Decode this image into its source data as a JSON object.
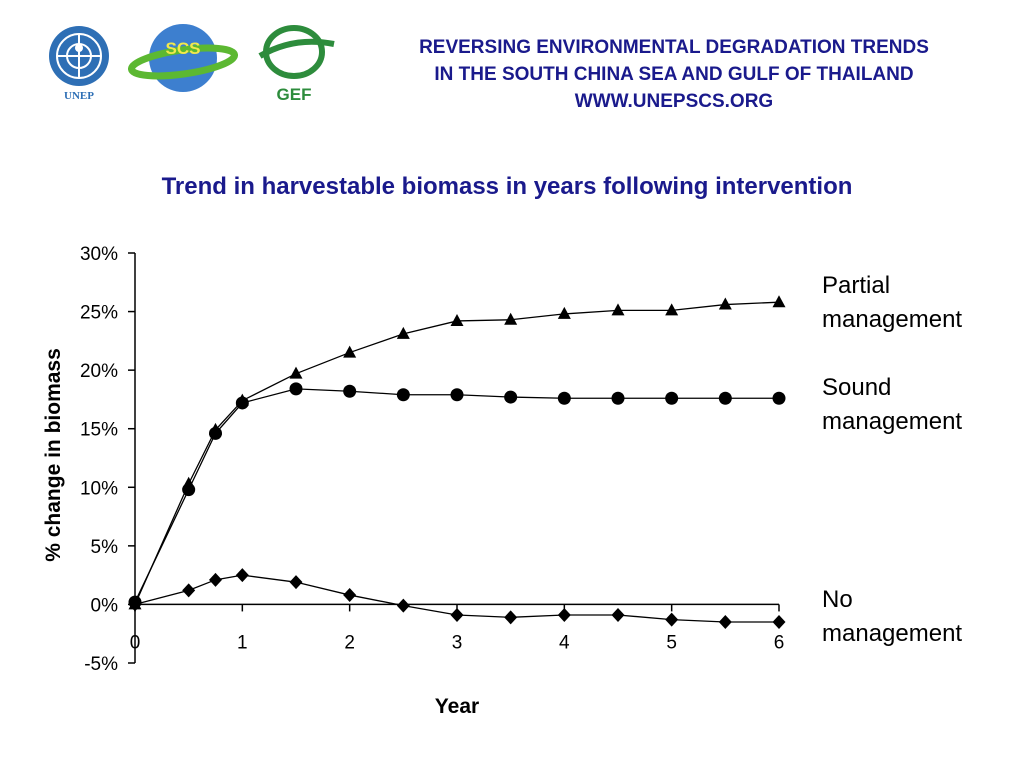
{
  "header": {
    "line1": "REVERSING ENVIRONMENTAL DEGRADATION TRENDS",
    "line2": "IN THE SOUTH CHINA SEA AND GULF OF THAILAND",
    "line3": "WWW.UNEPSCS.ORG"
  },
  "logos": {
    "unep": "UNEP",
    "scs": "SCS",
    "gef": "GEF",
    "unep_color": "#2e6fb5",
    "scs_color": "#3d7fcf",
    "scs_ring_color": "#5cb832",
    "gef_color": "#2d8c3c"
  },
  "chart_data": {
    "type": "line",
    "title": "Trend in harvestable biomass in years following intervention",
    "xlabel": "Year",
    "ylabel": "% change in biomass",
    "xlim": [
      0,
      6
    ],
    "ylim": [
      -0.05,
      0.3
    ],
    "x_ticks": [
      "0",
      "1",
      "2",
      "3",
      "4",
      "5",
      "6"
    ],
    "y_ticks": [
      "-5%",
      "0%",
      "5%",
      "10%",
      "15%",
      "20%",
      "25%",
      "30%"
    ],
    "y_tick_values": [
      -0.05,
      0,
      0.05,
      0.1,
      0.15,
      0.2,
      0.25,
      0.3
    ],
    "grid": false,
    "series": [
      {
        "name": "Partial management",
        "marker": "triangle",
        "x": [
          0,
          0.5,
          0.75,
          1,
          1.5,
          2,
          2.5,
          3,
          3.5,
          4,
          4.5,
          5,
          5.5,
          6
        ],
        "values": [
          0.0,
          0.103,
          0.149,
          0.174,
          0.197,
          0.215,
          0.231,
          0.242,
          0.243,
          0.248,
          0.251,
          0.251,
          0.256,
          0.258
        ]
      },
      {
        "name": "Sound management",
        "marker": "circle",
        "x": [
          0,
          0.5,
          0.75,
          1,
          1.5,
          2,
          2.5,
          3,
          3.5,
          4,
          4.5,
          5,
          5.5,
          6
        ],
        "values": [
          0.002,
          0.098,
          0.146,
          0.172,
          0.184,
          0.182,
          0.179,
          0.179,
          0.177,
          0.176,
          0.176,
          0.176,
          0.176,
          0.176
        ]
      },
      {
        "name": "No management",
        "marker": "diamond",
        "x": [
          0,
          0.5,
          0.75,
          1,
          1.5,
          2,
          2.5,
          3,
          3.5,
          4,
          4.5,
          5,
          5.5,
          6
        ],
        "values": [
          0.0,
          0.012,
          0.021,
          0.025,
          0.019,
          0.008,
          -0.001,
          -0.009,
          -0.011,
          -0.009,
          -0.009,
          -0.013,
          -0.015,
          -0.015
        ]
      }
    ]
  },
  "legend": {
    "partial_line1": "Partial",
    "partial_line2": "management",
    "sound_line1": "Sound",
    "sound_line2": "management",
    "none_line1": "No",
    "none_line2": "management"
  }
}
